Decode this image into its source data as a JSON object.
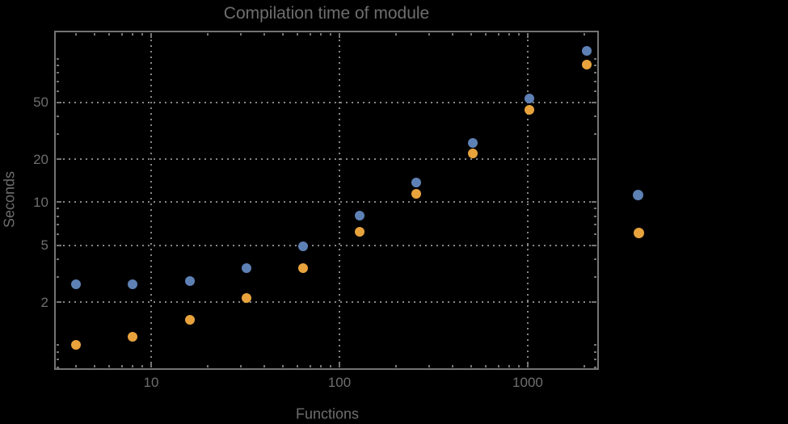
{
  "chart_data": {
    "type": "scatter",
    "title": "Compilation time of module",
    "xlabel": "Functions",
    "ylabel": "Seconds",
    "x_scale": "log",
    "y_scale": "log",
    "xlim": [
      3.1,
      2340
    ],
    "ylim": [
      0.69,
      154
    ],
    "grid": "dotted gray gridlines at labeled major ticks only",
    "frame": true,
    "background": "#000000",
    "text_color": "#6e6e6e",
    "grid_color": "#868686",
    "frame_color": "#747474",
    "x": [
      4,
      8,
      16,
      32,
      64,
      128,
      256,
      512,
      1024,
      2048
    ],
    "series": [
      {
        "name": "series-blue",
        "color": "#5E81B5",
        "values": [
          2.65,
          2.65,
          2.8,
          3.45,
          4.9,
          8.1,
          13.8,
          26,
          53,
          114
        ]
      },
      {
        "name": "series-orange",
        "color": "#E8A33D",
        "values": [
          1.0,
          1.15,
          1.5,
          2.15,
          3.45,
          6.2,
          11.5,
          22,
          44,
          92
        ]
      }
    ],
    "x_ticks": [
      {
        "value": 10,
        "label": "10"
      },
      {
        "value": 100,
        "label": "100"
      },
      {
        "value": 1000,
        "label": "1000"
      }
    ],
    "y_ticks": [
      {
        "value": 2,
        "label": "2"
      },
      {
        "value": 5,
        "label": "5"
      },
      {
        "value": 10,
        "label": "10"
      },
      {
        "value": 20,
        "label": "20"
      },
      {
        "value": 50,
        "label": "50"
      }
    ],
    "legend": {
      "position": "right-of-plot",
      "note": "marker dots only, no visible label text",
      "items": [
        {
          "marker_color": "#5E81B5",
          "label": ""
        },
        {
          "marker_color": "#E8A33D",
          "label": ""
        }
      ]
    }
  }
}
